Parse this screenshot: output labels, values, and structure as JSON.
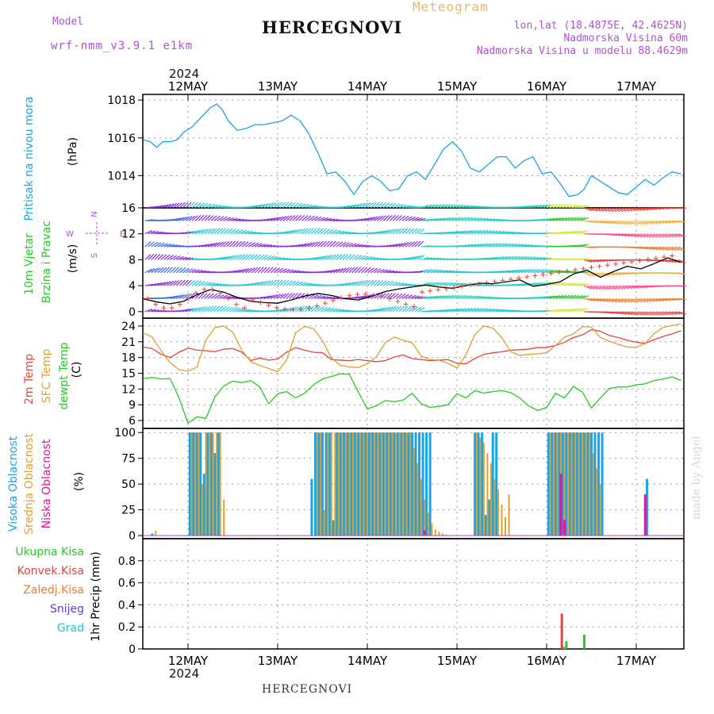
{
  "header": {
    "model_label": "Model",
    "model_name": "wrf-nmm_v3.9.1 e1km",
    "title": "HERCEGNOVI",
    "meteogram_label": "Meteogram",
    "lonlat": "lon,lat (18.4875E, 42.4625N)",
    "elevation": "Nadmorska Visina 60m",
    "model_elevation": "Nadmorska Visina u modelu 88.4629m",
    "year_top": "2024",
    "year_bottom": "2024"
  },
  "footer_title": "HERCEGNOVI",
  "credit": "made by Angel",
  "colors": {
    "pressure": "#1aa3e8",
    "temp2m": "#e8423c",
    "sfc_temp": "#e0a030",
    "dewpt": "#22cc22",
    "high_cloud": "#1aa3e8",
    "mid_cloud": "#e0a030",
    "low_cloud": "#e0179a",
    "total_precip": "#22cc22",
    "conv_precip": "#e8423c",
    "frozen_precip": "#f07a30",
    "snow": "#5a3ae0",
    "hail": "#20c8c8",
    "wind_speed_line": "#000000",
    "wind_dir_marker": "#e8423c",
    "wind_axis_label": "#b14fd8"
  },
  "chart_data": [
    {
      "type": "line",
      "name": "pressure",
      "ylabel_lines": [
        "Pritisak na nivou mora",
        "(hPa)"
      ],
      "ylim": [
        1012.3,
        1018.3
      ],
      "yticks": [
        1014,
        1016,
        1018
      ],
      "x_dates": [
        "12MAY",
        "13MAY",
        "14MAY",
        "15MAY",
        "16MAY",
        "17MAY"
      ],
      "x_range_days": [
        -0.5,
        5.5
      ],
      "grid": true,
      "series": [
        {
          "key": "pressure",
          "x": [
            -0.5,
            -0.42,
            -0.35,
            -0.28,
            -0.2,
            -0.12,
            -0.05,
            0.05,
            0.15,
            0.25,
            0.32,
            0.38,
            0.45,
            0.55,
            0.65,
            0.75,
            0.85,
            0.95,
            1.05,
            1.15,
            1.25,
            1.35,
            1.45,
            1.55,
            1.65,
            1.75,
            1.85,
            1.95,
            2.05,
            2.15,
            2.25,
            2.35,
            2.45,
            2.55,
            2.65,
            2.75,
            2.85,
            2.95,
            3.05,
            3.15,
            3.25,
            3.35,
            3.45,
            3.55,
            3.65,
            3.75,
            3.85,
            3.95,
            4.05,
            4.15,
            4.25,
            4.35,
            4.42,
            4.5,
            4.6,
            4.7,
            4.8,
            4.9,
            5.0,
            5.1,
            5.2,
            5.3,
            5.4,
            5.5
          ],
          "y": [
            1015.9,
            1015.8,
            1015.5,
            1015.8,
            1015.8,
            1015.9,
            1016.3,
            1016.6,
            1017.1,
            1017.6,
            1017.8,
            1017.5,
            1016.9,
            1016.4,
            1016.5,
            1016.7,
            1016.7,
            1016.8,
            1016.9,
            1017.2,
            1016.9,
            1016.2,
            1015.2,
            1014.1,
            1014.2,
            1013.7,
            1013.0,
            1013.7,
            1014.0,
            1013.7,
            1013.2,
            1013.3,
            1014.0,
            1014.2,
            1013.8,
            1014.6,
            1015.4,
            1015.8,
            1015.3,
            1014.4,
            1014.2,
            1014.6,
            1015.0,
            1015.0,
            1014.4,
            1014.8,
            1015.0,
            1014.1,
            1014.2,
            1013.6,
            1012.9,
            1013.0,
            1013.3,
            1014.0,
            1013.7,
            1013.4,
            1013.1,
            1013.0,
            1013.4,
            1013.8,
            1013.5,
            1013.9,
            1014.2,
            1014.1
          ]
        }
      ]
    },
    {
      "type": "line",
      "name": "wind",
      "ylabel_lines": [
        "10m Vjetar",
        "Brzina i Pravac",
        "(m/s)"
      ],
      "axis_labels": [
        "N",
        "W",
        "E",
        "S"
      ],
      "ylim": [
        -1,
        16
      ],
      "yticks": [
        0,
        4,
        8,
        12,
        16
      ],
      "x_range_days": [
        -0.5,
        5.5
      ],
      "grid": true,
      "series": [
        {
          "key": "wind_speed",
          "x": [
            -0.5,
            -0.35,
            -0.2,
            -0.05,
            0.1,
            0.25,
            0.4,
            0.55,
            0.7,
            0.85,
            1.0,
            1.15,
            1.3,
            1.45,
            1.6,
            1.75,
            1.9,
            2.05,
            2.2,
            2.35,
            2.5,
            2.65,
            2.8,
            2.95,
            3.1,
            3.25,
            3.4,
            3.55,
            3.7,
            3.85,
            4.0,
            4.15,
            4.3,
            4.45,
            4.6,
            4.75,
            4.9,
            5.05,
            5.2,
            5.35,
            5.5
          ],
          "y": [
            2.0,
            1.5,
            1.2,
            1.6,
            2.6,
            3.4,
            3.0,
            2.2,
            1.6,
            1.4,
            1.3,
            1.8,
            2.4,
            2.8,
            2.5,
            2.0,
            1.8,
            2.4,
            3.1,
            3.5,
            3.8,
            4.1,
            3.8,
            3.6,
            4.0,
            4.4,
            4.3,
            4.6,
            4.9,
            3.9,
            4.2,
            4.6,
            5.8,
            6.4,
            5.3,
            6.2,
            7.0,
            6.6,
            7.4,
            8.3,
            7.6
          ]
        }
      ]
    },
    {
      "type": "line",
      "name": "temperature",
      "ylabel_lines": [
        "2m Temp",
        "SFC Temp",
        "dewpt Temp",
        "(C)"
      ],
      "ylim": [
        4.5,
        25.5
      ],
      "yticks": [
        6,
        9,
        12,
        15,
        18,
        21,
        24
      ],
      "x_range_days": [
        -0.5,
        5.5
      ],
      "grid": true,
      "series": [
        {
          "key": "temp2m",
          "x": [
            -0.5,
            -0.4,
            -0.3,
            -0.2,
            -0.1,
            0.0,
            0.1,
            0.2,
            0.3,
            0.4,
            0.5,
            0.6,
            0.7,
            0.8,
            0.9,
            1.0,
            1.1,
            1.2,
            1.3,
            1.4,
            1.5,
            1.6,
            1.7,
            1.8,
            1.9,
            2.0,
            2.1,
            2.2,
            2.3,
            2.4,
            2.5,
            2.6,
            2.7,
            2.8,
            2.9,
            3.0,
            3.1,
            3.2,
            3.3,
            3.4,
            3.5,
            3.6,
            3.7,
            3.8,
            3.9,
            4.0,
            4.1,
            4.2,
            4.3,
            4.4,
            4.5,
            4.6,
            4.7,
            4.8,
            4.9,
            5.0,
            5.1,
            5.2,
            5.3,
            5.4,
            5.5
          ],
          "y": [
            20.0,
            19.7,
            18.6,
            18.0,
            19.0,
            19.8,
            19.4,
            19.3,
            19.1,
            19.6,
            19.7,
            19.0,
            17.4,
            17.9,
            17.5,
            17.7,
            19.0,
            19.9,
            19.4,
            19.0,
            18.9,
            17.6,
            17.5,
            17.4,
            17.6,
            17.4,
            17.2,
            17.4,
            18.1,
            18.5,
            17.8,
            17.6,
            17.4,
            17.5,
            17.6,
            16.9,
            16.8,
            17.8,
            18.6,
            18.9,
            19.1,
            19.4,
            19.5,
            19.6,
            19.9,
            19.9,
            20.3,
            20.9,
            21.8,
            22.3,
            23.3,
            23.0,
            22.2,
            21.8,
            21.3,
            20.9,
            20.7,
            21.4,
            22.0,
            22.5,
            23.1
          ]
        },
        {
          "key": "sfc_temp",
          "x": [
            -0.5,
            -0.4,
            -0.3,
            -0.2,
            -0.1,
            0.0,
            0.1,
            0.2,
            0.3,
            0.4,
            0.5,
            0.6,
            0.7,
            0.8,
            0.9,
            1.0,
            1.1,
            1.2,
            1.3,
            1.4,
            1.5,
            1.6,
            1.7,
            1.8,
            1.9,
            2.0,
            2.1,
            2.2,
            2.3,
            2.4,
            2.5,
            2.6,
            2.7,
            2.8,
            2.9,
            3.0,
            3.1,
            3.2,
            3.3,
            3.4,
            3.5,
            3.6,
            3.7,
            3.8,
            3.9,
            4.0,
            4.1,
            4.2,
            4.3,
            4.4,
            4.5,
            4.6,
            4.7,
            4.8,
            4.9,
            5.0,
            5.1,
            5.2,
            5.3,
            5.4,
            5.5
          ],
          "y": [
            22.7,
            21.9,
            19.3,
            17.0,
            15.7,
            15.4,
            16.2,
            21.3,
            23.7,
            24.0,
            22.8,
            19.4,
            17.2,
            16.5,
            15.9,
            15.3,
            17.5,
            22.7,
            23.9,
            23.5,
            21.2,
            17.9,
            16.5,
            16.2,
            16.1,
            16.8,
            18.1,
            20.8,
            21.9,
            21.3,
            20.8,
            18.3,
            17.6,
            17.5,
            16.9,
            16.0,
            18.5,
            22.4,
            24.0,
            23.6,
            21.8,
            19.1,
            18.4,
            18.6,
            18.7,
            18.9,
            20.3,
            21.9,
            22.5,
            23.9,
            23.8,
            21.8,
            21.1,
            20.5,
            20.0,
            19.9,
            20.7,
            22.6,
            23.7,
            24.1,
            24.4
          ]
        },
        {
          "key": "dewpt",
          "x": [
            -0.5,
            -0.4,
            -0.3,
            -0.2,
            -0.1,
            0.0,
            0.1,
            0.2,
            0.3,
            0.4,
            0.5,
            0.6,
            0.7,
            0.8,
            0.9,
            1.0,
            1.1,
            1.2,
            1.3,
            1.4,
            1.5,
            1.6,
            1.7,
            1.8,
            1.9,
            2.0,
            2.1,
            2.2,
            2.3,
            2.4,
            2.5,
            2.6,
            2.7,
            2.8,
            2.9,
            3.0,
            3.1,
            3.2,
            3.3,
            3.4,
            3.5,
            3.6,
            3.7,
            3.8,
            3.9,
            4.0,
            4.1,
            4.2,
            4.3,
            4.4,
            4.5,
            4.6,
            4.7,
            4.8,
            4.9,
            5.0,
            5.1,
            5.2,
            5.3,
            5.4,
            5.5
          ],
          "y": [
            14.0,
            14.2,
            13.9,
            14.0,
            10.3,
            5.5,
            6.7,
            6.4,
            10.5,
            12.6,
            13.5,
            13.2,
            13.6,
            12.4,
            9.2,
            11.1,
            11.5,
            10.3,
            11.2,
            12.8,
            13.9,
            14.4,
            14.9,
            14.8,
            11.4,
            8.2,
            8.8,
            9.8,
            9.6,
            9.9,
            11.2,
            9.2,
            8.5,
            8.7,
            9.0,
            11.1,
            10.3,
            11.7,
            11.2,
            11.5,
            11.7,
            11.3,
            10.3,
            8.8,
            7.9,
            8.5,
            11.2,
            10.3,
            12.5,
            11.4,
            8.4,
            10.3,
            12.1,
            12.4,
            12.4,
            12.8,
            13.0,
            13.6,
            13.9,
            14.3,
            13.6
          ]
        }
      ]
    },
    {
      "type": "bar",
      "name": "cloud",
      "ylabel_lines": [
        "Visoka Oblacnost",
        "Srednja Oblacnost",
        "Niska Oblacnost",
        "(%)"
      ],
      "ylim": [
        -3,
        104
      ],
      "yticks": [
        0,
        25,
        50,
        75,
        100
      ],
      "x_range_days": [
        -0.5,
        5.5
      ],
      "grid": true,
      "series": [
        {
          "key": "high_cloud",
          "x": [
            -0.4,
            0.02,
            0.06,
            0.1,
            0.14,
            0.18,
            0.22,
            0.26,
            0.3,
            0.34,
            1.38,
            1.42,
            1.46,
            1.5,
            1.54,
            1.58,
            1.62,
            1.66,
            1.7,
            1.74,
            1.78,
            1.82,
            1.86,
            1.9,
            1.94,
            1.98,
            2.02,
            2.06,
            2.1,
            2.14,
            2.18,
            2.22,
            2.26,
            2.3,
            2.34,
            2.38,
            2.42,
            2.46,
            2.5,
            2.54,
            2.58,
            2.62,
            2.66,
            2.7,
            3.2,
            3.24,
            3.28,
            3.32,
            3.36,
            3.4,
            3.44,
            4.02,
            4.06,
            4.1,
            4.14,
            4.18,
            4.22,
            4.26,
            4.3,
            4.34,
            4.38,
            4.42,
            4.46,
            4.5,
            4.54,
            4.58,
            4.62,
            5.12
          ],
          "y": [
            2,
            100,
            100,
            100,
            100,
            60,
            100,
            100,
            80,
            100,
            55,
            100,
            100,
            100,
            100,
            100,
            15,
            100,
            100,
            100,
            100,
            100,
            100,
            100,
            100,
            100,
            100,
            100,
            100,
            100,
            100,
            100,
            100,
            100,
            100,
            100,
            100,
            100,
            100,
            100,
            100,
            100,
            100,
            100,
            100,
            100,
            100,
            20,
            35,
            100,
            100,
            100,
            100,
            100,
            100,
            100,
            100,
            100,
            100,
            100,
            100,
            100,
            100,
            100,
            100,
            100,
            100,
            55
          ]
        },
        {
          "key": "mid_cloud",
          "x": [
            -0.36,
            0.04,
            0.08,
            0.12,
            0.16,
            0.2,
            0.24,
            0.28,
            0.32,
            0.36,
            0.4,
            1.44,
            1.48,
            1.52,
            1.56,
            1.6,
            1.64,
            1.68,
            1.72,
            1.76,
            1.8,
            1.84,
            1.88,
            1.92,
            1.96,
            2.0,
            2.04,
            2.08,
            2.12,
            2.16,
            2.2,
            2.24,
            2.28,
            2.32,
            2.36,
            2.4,
            2.44,
            2.48,
            2.52,
            2.56,
            2.6,
            2.64,
            2.68,
            2.72,
            2.76,
            2.8,
            2.84,
            2.88,
            3.22,
            3.26,
            3.3,
            3.34,
            3.38,
            3.42,
            3.46,
            3.5,
            3.54,
            3.58,
            4.04,
            4.08,
            4.12,
            4.16,
            4.2,
            4.24,
            4.28,
            4.32,
            4.36,
            4.4,
            4.44,
            4.48,
            4.52,
            4.56,
            4.6
          ],
          "y": [
            5,
            100,
            100,
            100,
            50,
            100,
            100,
            100,
            100,
            100,
            35,
            100,
            100,
            25,
            100,
            100,
            100,
            100,
            100,
            100,
            100,
            100,
            100,
            100,
            100,
            100,
            100,
            100,
            100,
            100,
            100,
            100,
            100,
            100,
            100,
            100,
            100,
            100,
            85,
            70,
            55,
            35,
            22,
            12,
            6,
            4,
            2,
            1,
            100,
            95,
            90,
            80,
            70,
            55,
            45,
            30,
            18,
            40,
            100,
            100,
            100,
            100,
            100,
            100,
            100,
            100,
            100,
            100,
            100,
            100,
            80,
            65,
            50
          ]
        },
        {
          "key": "low_cloud",
          "x": [
            2.64,
            4.16,
            4.2,
            5.1
          ],
          "y": [
            5,
            60,
            15,
            40
          ]
        }
      ]
    },
    {
      "type": "bar",
      "name": "precipitation",
      "ylabel_lines": [
        "1hr Precip (mm)"
      ],
      "legend": [
        "Ukupna Kisa",
        "Konvek.Kisa",
        "Zaledj.Kisa",
        "Snijeg",
        "Grad"
      ],
      "ylim": [
        0,
        1.0
      ],
      "yticks": [
        0,
        0.2,
        0.4,
        0.6,
        0.8
      ],
      "x_range_days": [
        -0.5,
        5.5
      ],
      "grid": true,
      "series": [
        {
          "key": "total_precip",
          "x": [
            4.18,
            4.22,
            4.42
          ],
          "y": [
            0.02,
            0.07,
            0.13
          ]
        },
        {
          "key": "conv_precip",
          "x": [
            4.17
          ],
          "y": [
            0.32
          ]
        },
        {
          "key": "frozen_precip",
          "x": [
            4.2
          ],
          "y": [
            0.02
          ]
        },
        {
          "key": "snow",
          "x": [],
          "y": []
        },
        {
          "key": "hail",
          "x": [],
          "y": []
        }
      ]
    }
  ]
}
